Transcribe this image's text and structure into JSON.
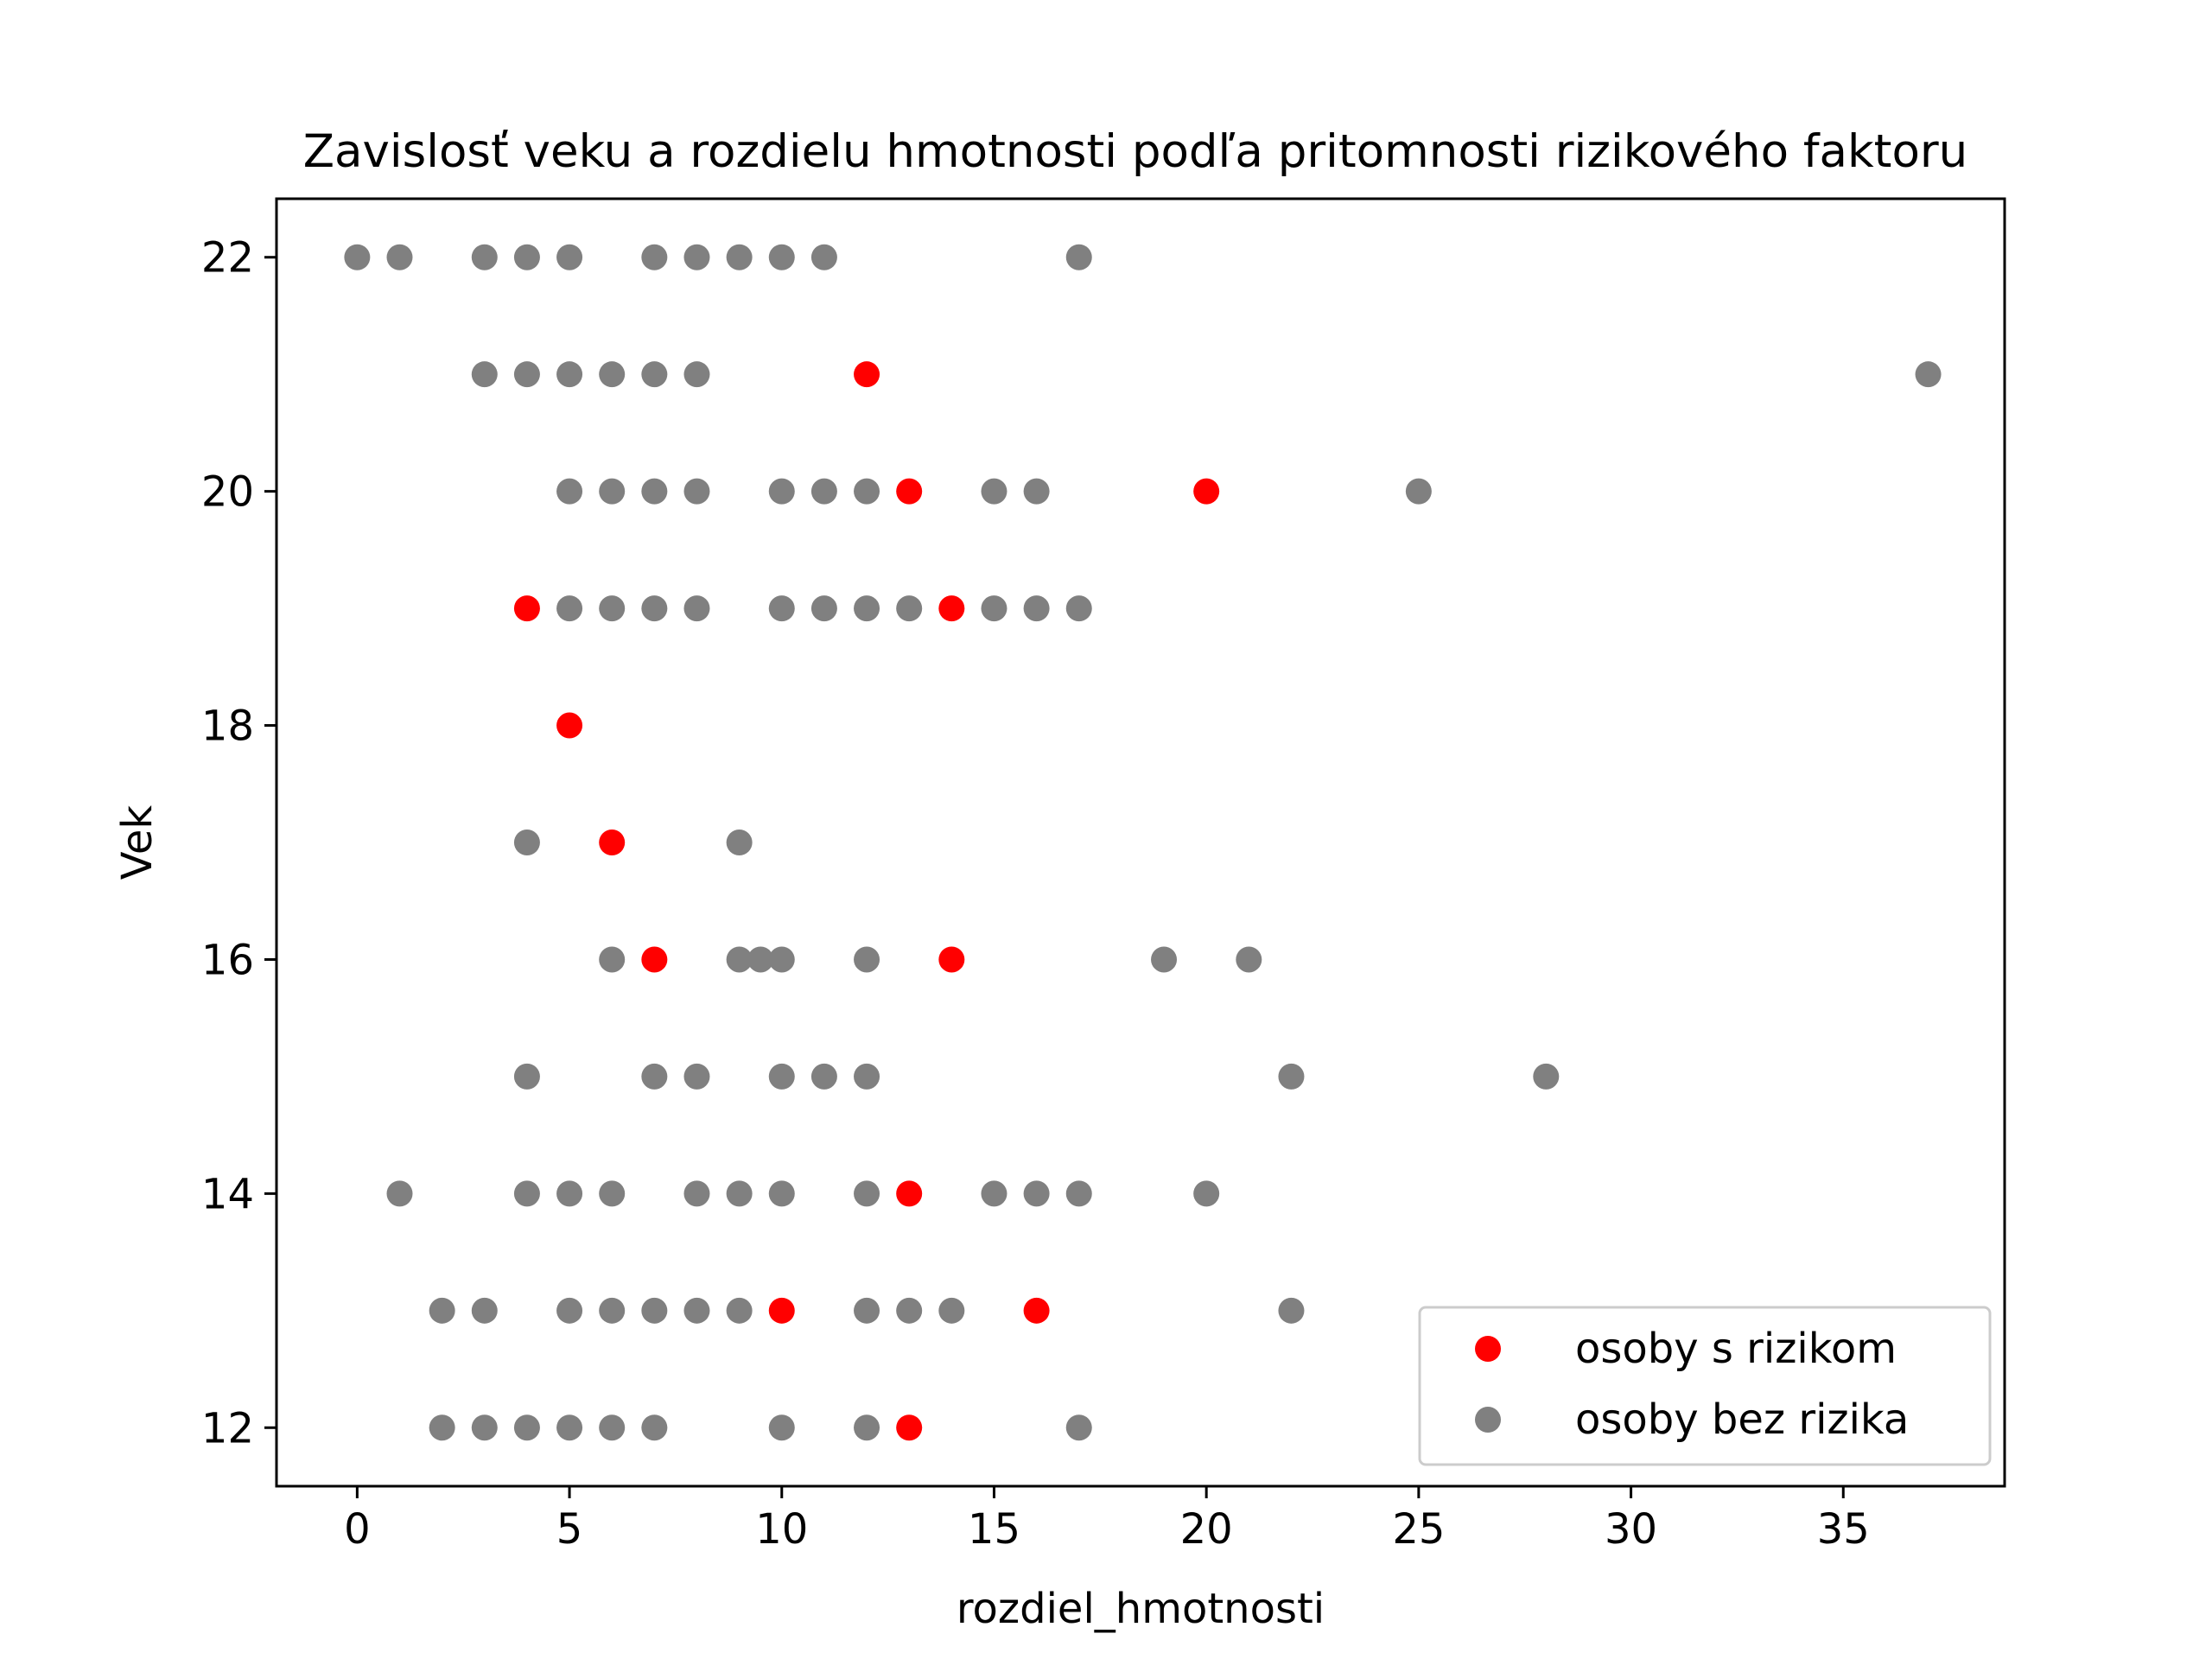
{
  "chart_data": {
    "type": "scatter",
    "title": "Zavislosť veku a rozdielu hmotnosti podľa pritomnosti rizikového faktoru",
    "xlabel": "rozdiel_hmotnosti",
    "ylabel": "Vek",
    "xlim": [
      -1.9,
      38.8
    ],
    "ylim": [
      11.5,
      22.5
    ],
    "x_ticks": [
      0,
      5,
      10,
      15,
      20,
      25,
      30,
      35
    ],
    "y_ticks": [
      12,
      14,
      16,
      18,
      20,
      22
    ],
    "grid": false,
    "legend_position": "lower-right",
    "series": [
      {
        "name": "osoby s rizikom",
        "color": "#ff0000",
        "points": [
          [
            12,
            21
          ],
          [
            13,
            20
          ],
          [
            20,
            20
          ],
          [
            4,
            19
          ],
          [
            14,
            19
          ],
          [
            5,
            18
          ],
          [
            6,
            17
          ],
          [
            7,
            16
          ],
          [
            14,
            16
          ],
          [
            13,
            14
          ],
          [
            10,
            13
          ],
          [
            16,
            13
          ],
          [
            13,
            12
          ]
        ]
      },
      {
        "name": "osoby bez rizika",
        "color": "#808080",
        "points": [
          [
            0,
            22
          ],
          [
            1,
            22
          ],
          [
            3,
            22
          ],
          [
            4,
            22
          ],
          [
            5,
            22
          ],
          [
            7,
            22
          ],
          [
            8,
            22
          ],
          [
            9,
            22
          ],
          [
            10,
            22
          ],
          [
            11,
            22
          ],
          [
            17,
            22
          ],
          [
            3,
            21
          ],
          [
            4,
            21
          ],
          [
            5,
            21
          ],
          [
            6,
            21
          ],
          [
            7,
            21
          ],
          [
            8,
            21
          ],
          [
            37,
            21
          ],
          [
            5,
            20
          ],
          [
            6,
            20
          ],
          [
            7,
            20
          ],
          [
            8,
            20
          ],
          [
            10,
            20
          ],
          [
            11,
            20
          ],
          [
            12,
            20
          ],
          [
            15,
            20
          ],
          [
            16,
            20
          ],
          [
            25,
            20
          ],
          [
            5,
            19
          ],
          [
            6,
            19
          ],
          [
            7,
            19
          ],
          [
            8,
            19
          ],
          [
            10,
            19
          ],
          [
            11,
            19
          ],
          [
            12,
            19
          ],
          [
            13,
            19
          ],
          [
            15,
            19
          ],
          [
            16,
            19
          ],
          [
            17,
            19
          ],
          [
            4,
            17
          ],
          [
            9,
            17
          ],
          [
            6,
            16
          ],
          [
            9,
            16
          ],
          [
            9.5,
            16
          ],
          [
            10,
            16
          ],
          [
            12,
            16
          ],
          [
            19,
            16
          ],
          [
            21,
            16
          ],
          [
            4,
            15
          ],
          [
            7,
            15
          ],
          [
            8,
            15
          ],
          [
            10,
            15
          ],
          [
            11,
            15
          ],
          [
            12,
            15
          ],
          [
            22,
            15
          ],
          [
            28,
            15
          ],
          [
            1,
            14
          ],
          [
            4,
            14
          ],
          [
            5,
            14
          ],
          [
            6,
            14
          ],
          [
            8,
            14
          ],
          [
            9,
            14
          ],
          [
            10,
            14
          ],
          [
            12,
            14
          ],
          [
            15,
            14
          ],
          [
            16,
            14
          ],
          [
            17,
            14
          ],
          [
            20,
            14
          ],
          [
            2,
            13
          ],
          [
            3,
            13
          ],
          [
            5,
            13
          ],
          [
            6,
            13
          ],
          [
            7,
            13
          ],
          [
            8,
            13
          ],
          [
            9,
            13
          ],
          [
            12,
            13
          ],
          [
            13,
            13
          ],
          [
            14,
            13
          ],
          [
            22,
            13
          ],
          [
            2,
            12
          ],
          [
            3,
            12
          ],
          [
            4,
            12
          ],
          [
            5,
            12
          ],
          [
            6,
            12
          ],
          [
            7,
            12
          ],
          [
            10,
            12
          ],
          [
            12,
            12
          ],
          [
            17,
            12
          ]
        ]
      }
    ]
  }
}
